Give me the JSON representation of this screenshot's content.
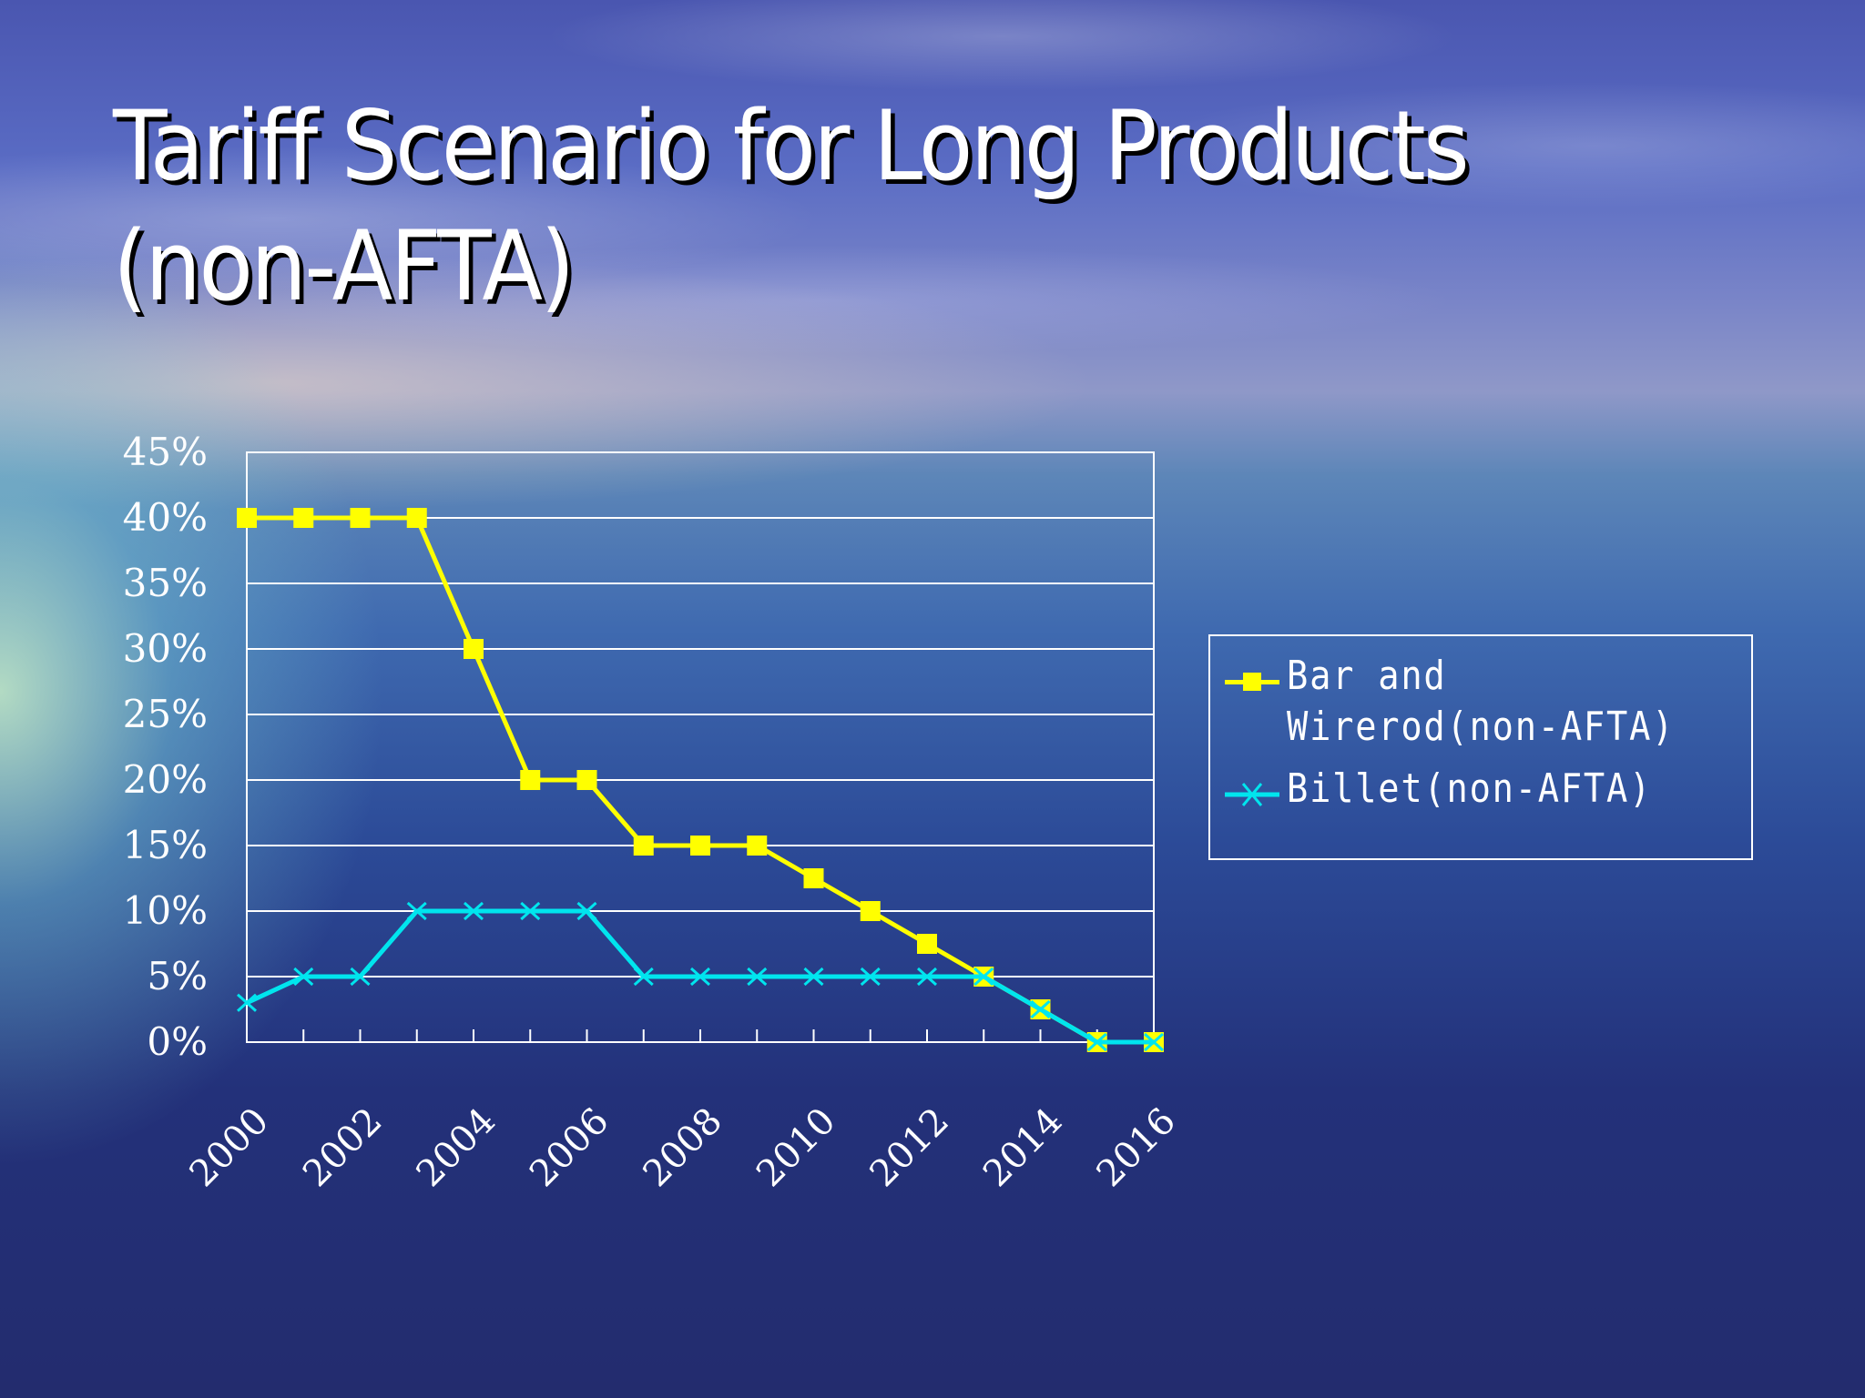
{
  "slide": {
    "title_line1": "Tariff Scenario for Long Products",
    "title_line2": "(non-AFTA)"
  },
  "legend": {
    "items": [
      {
        "label": "Bar and Wirerod(non-AFTA)",
        "color": "#ffff00",
        "marker": "square"
      },
      {
        "label": "Billet(non-AFTA)",
        "color": "#00e5ee",
        "marker": "x"
      }
    ]
  },
  "colors": {
    "bar_wirerod": "#ffff00",
    "billet": "#00e5ee",
    "grid": "#ffffff",
    "text": "#ffffff"
  },
  "chart_data": {
    "type": "line",
    "title": "Tariff Scenario for Long Products (non-AFTA)",
    "xlabel": "",
    "ylabel": "",
    "x": [
      2000,
      2001,
      2002,
      2003,
      2004,
      2005,
      2006,
      2007,
      2008,
      2009,
      2010,
      2011,
      2012,
      2013,
      2014,
      2015,
      2016
    ],
    "x_tick_labels": [
      "2000",
      "2002",
      "2004",
      "2006",
      "2008",
      "2010",
      "2012",
      "2014",
      "2016"
    ],
    "y_tick_labels": [
      "0%",
      "5%",
      "10%",
      "15%",
      "20%",
      "25%",
      "30%",
      "35%",
      "40%",
      "45%"
    ],
    "ylim": [
      0,
      45
    ],
    "grid": true,
    "legend_position": "right",
    "series": [
      {
        "name": "Bar and Wirerod(non-AFTA)",
        "marker": "square",
        "color": "#ffff00",
        "values": [
          40,
          40,
          40,
          40,
          30,
          20,
          20,
          15,
          15,
          15,
          12.5,
          10,
          7.5,
          5,
          2.5,
          0,
          0
        ]
      },
      {
        "name": "Billet(non-AFTA)",
        "marker": "x",
        "color": "#00e5ee",
        "values": [
          3,
          5,
          5,
          10,
          10,
          10,
          10,
          5,
          5,
          5,
          5,
          5,
          5,
          5,
          2.5,
          0,
          0
        ]
      }
    ]
  }
}
